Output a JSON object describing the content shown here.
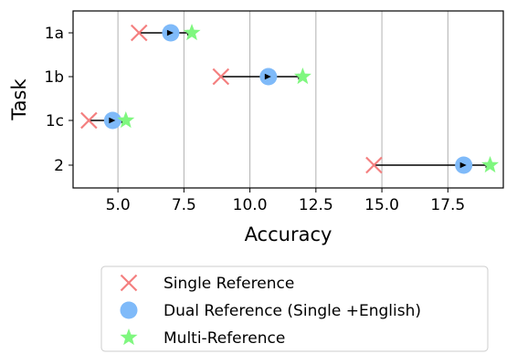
{
  "chart_data": {
    "type": "scatter",
    "xlabel": "Accuracy",
    "ylabel": "Task",
    "xlim": [
      3.3,
      19.6
    ],
    "xticks": [
      5.0,
      7.5,
      10.0,
      12.5,
      15.0,
      17.5
    ],
    "xtick_labels": [
      "5.0",
      "7.5",
      "10.0",
      "12.5",
      "15.0",
      "17.5"
    ],
    "grid": "x",
    "legend_position": "bottom",
    "categories": [
      "1a",
      "1b",
      "1c",
      "2"
    ],
    "series": [
      {
        "name": "Single Reference",
        "marker": "x",
        "color": "#f47f7f",
        "values": [
          5.8,
          8.9,
          3.9,
          14.7
        ]
      },
      {
        "name": "Dual Reference (Single +English)",
        "marker": "circle",
        "color": "#7fbaf9",
        "values": [
          7.0,
          10.7,
          4.8,
          18.1
        ]
      },
      {
        "name": "Multi-Reference",
        "marker": "star",
        "color": "#7ff77f",
        "values": [
          7.8,
          12.0,
          5.3,
          19.1
        ]
      }
    ],
    "arrows": "from Single Reference to Multi-Reference for each task"
  }
}
